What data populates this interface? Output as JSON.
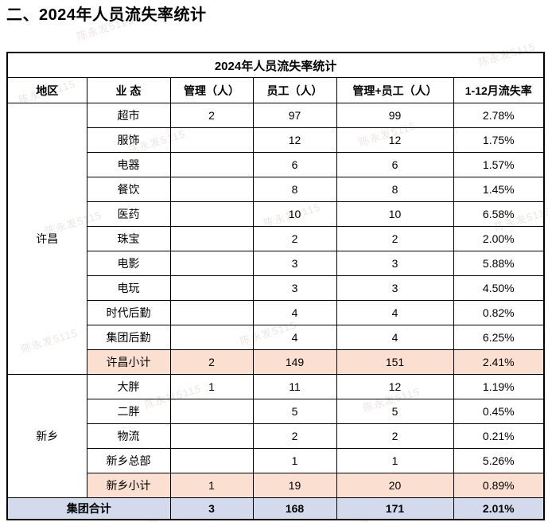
{
  "page": {
    "heading": "二、2024年人员流失率统计"
  },
  "watermark": {
    "text": "陈永发5115"
  },
  "colors": {
    "subtotal_bg": "#fbdfd0",
    "total_bg": "#d2daeb",
    "border": "#000000"
  },
  "table": {
    "title": "2024年人员流失率统计",
    "columns": [
      "地区",
      "业 态",
      "管理（人）",
      "员工（人）",
      "管理+员工（人）",
      "1-12月流失率"
    ],
    "groups": [
      {
        "region": "许昌",
        "rows": [
          {
            "name": "超市",
            "mgmt": "2",
            "staff": "97",
            "total": "99",
            "rate": "2.78%"
          },
          {
            "name": "服饰",
            "mgmt": "",
            "staff": "12",
            "total": "12",
            "rate": "1.75%"
          },
          {
            "name": "电器",
            "mgmt": "",
            "staff": "6",
            "total": "6",
            "rate": "1.57%"
          },
          {
            "name": "餐饮",
            "mgmt": "",
            "staff": "8",
            "total": "8",
            "rate": "1.45%"
          },
          {
            "name": "医药",
            "mgmt": "",
            "staff": "10",
            "total": "10",
            "rate": "6.58%"
          },
          {
            "name": "珠宝",
            "mgmt": "",
            "staff": "2",
            "total": "2",
            "rate": "2.00%"
          },
          {
            "name": "电影",
            "mgmt": "",
            "staff": "3",
            "total": "3",
            "rate": "5.88%"
          },
          {
            "name": "电玩",
            "mgmt": "",
            "staff": "3",
            "total": "3",
            "rate": "4.50%"
          },
          {
            "name": "时代后勤",
            "mgmt": "",
            "staff": "4",
            "total": "4",
            "rate": "0.82%"
          },
          {
            "name": "集团后勤",
            "mgmt": "",
            "staff": "4",
            "total": "4",
            "rate": "6.25%"
          },
          {
            "name": "许昌小计",
            "mgmt": "2",
            "staff": "149",
            "total": "151",
            "rate": "2.41%",
            "subtotal": true
          }
        ]
      },
      {
        "region": "新乡",
        "rows": [
          {
            "name": "大胖",
            "mgmt": "1",
            "staff": "11",
            "total": "12",
            "rate": "1.19%"
          },
          {
            "name": "二胖",
            "mgmt": "",
            "staff": "5",
            "total": "5",
            "rate": "0.45%"
          },
          {
            "name": "物流",
            "mgmt": "",
            "staff": "2",
            "total": "2",
            "rate": "0.21%"
          },
          {
            "name": "新乡总部",
            "mgmt": "",
            "staff": "1",
            "total": "1",
            "rate": "5.26%"
          },
          {
            "name": "新乡小计",
            "mgmt": "1",
            "staff": "19",
            "total": "20",
            "rate": "0.89%",
            "subtotal": true
          }
        ]
      }
    ],
    "grand_total": {
      "label": "集团合计",
      "mgmt": "3",
      "staff": "168",
      "total": "171",
      "rate": "2.01%"
    }
  }
}
